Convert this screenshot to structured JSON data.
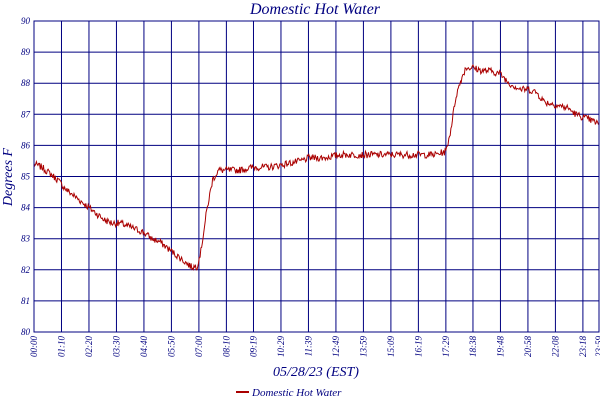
{
  "chart_data": {
    "type": "line",
    "title": "Domestic Hot Water",
    "xlabel": "05/28/23 (EST)",
    "ylabel": "Degrees F",
    "ylim": [
      80,
      90
    ],
    "yticks": [
      80,
      81,
      82,
      83,
      84,
      85,
      86,
      87,
      88,
      89,
      90
    ],
    "ytick_labels": [
      "80",
      "81",
      "82",
      "83",
      "84",
      "85",
      "86",
      "87",
      "88",
      "89",
      "90"
    ],
    "xlim_minutes": [
      0,
      1439
    ],
    "xtick_labels": [
      "00:00",
      "01:10",
      "02:20",
      "03:30",
      "04:40",
      "05:50",
      "07:00",
      "08:10",
      "09:19",
      "10:29",
      "11:39",
      "12:49",
      "13:59",
      "15:09",
      "16:19",
      "17:29",
      "18:38",
      "19:48",
      "20:58",
      "22:08",
      "23:18",
      "23:59"
    ],
    "xtick_minutes": [
      0,
      70,
      140,
      210,
      280,
      350,
      420,
      490,
      559,
      629,
      699,
      769,
      839,
      909,
      979,
      1049,
      1118,
      1188,
      1258,
      1328,
      1398,
      1439
    ],
    "grid": true,
    "legend": {
      "position": "bottom-center",
      "entries": [
        "Domestic Hot Water"
      ]
    },
    "series": [
      {
        "name": "Domestic Hot Water",
        "color": "#aa0000",
        "x": [
          0,
          20,
          40,
          60,
          80,
          100,
          120,
          140,
          160,
          180,
          200,
          220,
          240,
          260,
          280,
          300,
          320,
          340,
          360,
          380,
          400,
          415,
          425,
          440,
          455,
          470,
          490,
          520,
          560,
          600,
          640,
          680,
          700,
          740,
          780,
          820,
          860,
          900,
          940,
          980,
          1020,
          1049,
          1060,
          1075,
          1090,
          1100,
          1118,
          1140,
          1160,
          1188,
          1210,
          1240,
          1260,
          1280,
          1300,
          1330,
          1360,
          1380,
          1400,
          1420,
          1439
        ],
        "values": [
          85.4,
          85.3,
          85.1,
          84.9,
          84.6,
          84.4,
          84.2,
          84.0,
          83.8,
          83.6,
          83.5,
          83.5,
          83.4,
          83.3,
          83.2,
          83.0,
          82.9,
          82.7,
          82.5,
          82.3,
          82.1,
          82.1,
          82.6,
          83.9,
          84.9,
          85.2,
          85.2,
          85.2,
          85.3,
          85.3,
          85.4,
          85.5,
          85.6,
          85.6,
          85.7,
          85.7,
          85.7,
          85.7,
          85.7,
          85.7,
          85.7,
          85.8,
          86.4,
          87.6,
          88.2,
          88.5,
          88.5,
          88.4,
          88.4,
          88.3,
          88.0,
          87.8,
          87.8,
          87.7,
          87.4,
          87.3,
          87.2,
          87.0,
          86.9,
          86.8,
          86.7
        ]
      }
    ]
  }
}
